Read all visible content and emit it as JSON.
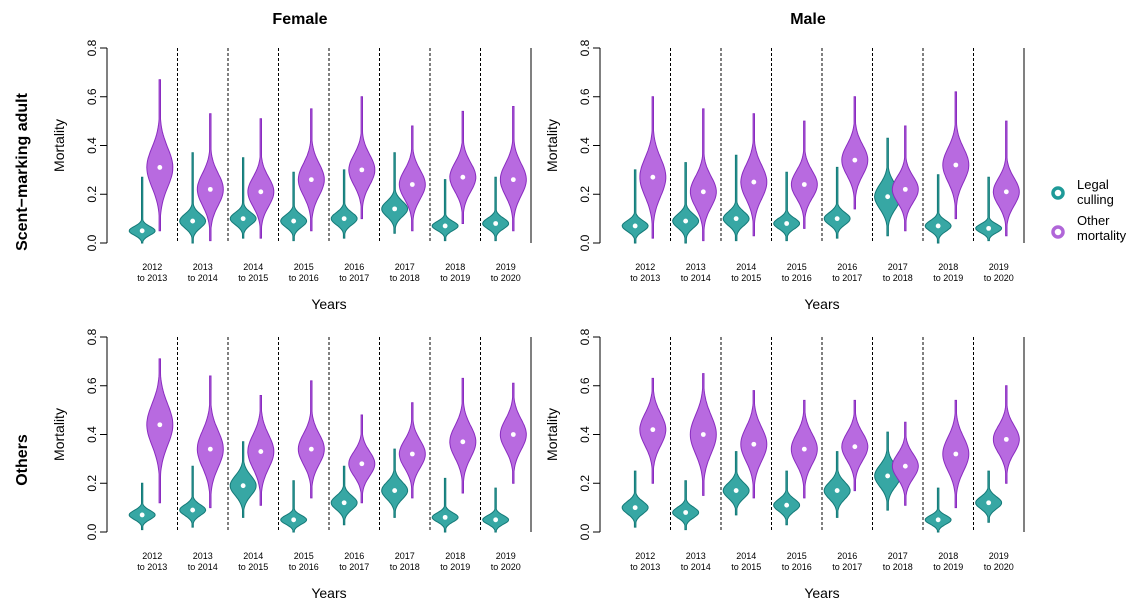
{
  "figure": {
    "col_titles": [
      "Female",
      "Male"
    ],
    "row_titles": [
      "Scent−marking adult",
      "Others"
    ],
    "legend": [
      {
        "line1": "Legal",
        "line2": "culling",
        "color": "#1e9a98"
      },
      {
        "line1": "Other",
        "line2": "mortality",
        "color": "#b066d8"
      }
    ]
  },
  "chart_data": [
    {
      "type": "violin",
      "panel": "Scent-marking adult / Female",
      "xlabel": "Years",
      "ylabel": "Mortality",
      "ylim": [
        0,
        0.8
      ],
      "yticks": [
        "0.0",
        "0.2",
        "0.4",
        "0.6",
        "0.8"
      ],
      "categories": [
        [
          "2012",
          "to 2013"
        ],
        [
          "2013",
          "to 2014"
        ],
        [
          "2014",
          "to 2015"
        ],
        [
          "2015",
          "to 2016"
        ],
        [
          "2016",
          "to 2017"
        ],
        [
          "2017",
          "to 2018"
        ],
        [
          "2018",
          "to 2019"
        ],
        [
          "2019",
          "to 2020"
        ]
      ],
      "series": [
        {
          "name": "Legal culling",
          "median": [
            0.05,
            0.09,
            0.1,
            0.09,
            0.1,
            0.14,
            0.07,
            0.08
          ],
          "min": [
            0.0,
            0.0,
            0.02,
            0.01,
            0.02,
            0.04,
            0.01,
            0.01
          ],
          "max": [
            0.27,
            0.37,
            0.35,
            0.29,
            0.3,
            0.37,
            0.26,
            0.27
          ]
        },
        {
          "name": "Other mortality",
          "median": [
            0.31,
            0.22,
            0.21,
            0.26,
            0.3,
            0.24,
            0.27,
            0.26
          ],
          "min": [
            0.05,
            0.01,
            0.02,
            0.05,
            0.1,
            0.05,
            0.08,
            0.05
          ],
          "max": [
            0.67,
            0.53,
            0.51,
            0.55,
            0.6,
            0.48,
            0.54,
            0.56
          ]
        }
      ]
    },
    {
      "type": "violin",
      "panel": "Scent-marking adult / Male",
      "xlabel": "Years",
      "ylabel": "Mortality",
      "ylim": [
        0,
        0.8
      ],
      "yticks": [
        "0.0",
        "0.2",
        "0.4",
        "0.6",
        "0.8"
      ],
      "categories": [
        [
          "2012",
          "to 2013"
        ],
        [
          "2013",
          "to 2014"
        ],
        [
          "2014",
          "to 2015"
        ],
        [
          "2015",
          "to 2016"
        ],
        [
          "2016",
          "to 2017"
        ],
        [
          "2017",
          "to 2018"
        ],
        [
          "2018",
          "to 2019"
        ],
        [
          "2019",
          "to 2020"
        ]
      ],
      "series": [
        {
          "name": "Legal culling",
          "median": [
            0.07,
            0.09,
            0.1,
            0.08,
            0.1,
            0.19,
            0.07,
            0.06
          ],
          "min": [
            0.0,
            0.0,
            0.01,
            0.01,
            0.02,
            0.03,
            0.0,
            0.01
          ],
          "max": [
            0.3,
            0.33,
            0.36,
            0.29,
            0.31,
            0.43,
            0.28,
            0.27
          ]
        },
        {
          "name": "Other mortality",
          "median": [
            0.27,
            0.21,
            0.25,
            0.24,
            0.34,
            0.22,
            0.32,
            0.21
          ],
          "min": [
            0.02,
            0.01,
            0.03,
            0.06,
            0.14,
            0.05,
            0.1,
            0.03
          ],
          "max": [
            0.6,
            0.55,
            0.53,
            0.5,
            0.6,
            0.48,
            0.62,
            0.5
          ]
        }
      ]
    },
    {
      "type": "violin",
      "panel": "Others / Female",
      "xlabel": "Years",
      "ylabel": "Mortality",
      "ylim": [
        0,
        0.8
      ],
      "yticks": [
        "0.0",
        "0.2",
        "0.4",
        "0.6",
        "0.8"
      ],
      "categories": [
        [
          "2012",
          "to 2013"
        ],
        [
          "2013",
          "to 2014"
        ],
        [
          "2014",
          "to 2015"
        ],
        [
          "2015",
          "to 2016"
        ],
        [
          "2016",
          "to 2017"
        ],
        [
          "2017",
          "to 2018"
        ],
        [
          "2018",
          "to 2019"
        ],
        [
          "2019",
          "to 2020"
        ]
      ],
      "series": [
        {
          "name": "Legal culling",
          "median": [
            0.07,
            0.09,
            0.19,
            0.05,
            0.12,
            0.17,
            0.06,
            0.05
          ],
          "min": [
            0.01,
            0.02,
            0.06,
            0.0,
            0.03,
            0.06,
            0.0,
            0.0
          ],
          "max": [
            0.2,
            0.27,
            0.37,
            0.21,
            0.27,
            0.34,
            0.22,
            0.18
          ]
        },
        {
          "name": "Other mortality",
          "median": [
            0.44,
            0.34,
            0.33,
            0.34,
            0.28,
            0.32,
            0.37,
            0.4
          ],
          "min": [
            0.12,
            0.1,
            0.11,
            0.14,
            0.12,
            0.14,
            0.16,
            0.2
          ],
          "max": [
            0.71,
            0.64,
            0.56,
            0.62,
            0.48,
            0.53,
            0.63,
            0.61
          ]
        }
      ]
    },
    {
      "type": "violin",
      "panel": "Others / Male",
      "xlabel": "Years",
      "ylabel": "Mortality",
      "ylim": [
        0,
        0.8
      ],
      "yticks": [
        "0.0",
        "0.2",
        "0.4",
        "0.6",
        "0.8"
      ],
      "categories": [
        [
          "2012",
          "to 2013"
        ],
        [
          "2013",
          "to 2014"
        ],
        [
          "2014",
          "to 2015"
        ],
        [
          "2015",
          "to 2016"
        ],
        [
          "2016",
          "to 2017"
        ],
        [
          "2017",
          "to 2018"
        ],
        [
          "2018",
          "to 2019"
        ],
        [
          "2019",
          "to 2020"
        ]
      ],
      "series": [
        {
          "name": "Legal culling",
          "median": [
            0.1,
            0.08,
            0.17,
            0.11,
            0.17,
            0.23,
            0.05,
            0.12
          ],
          "min": [
            0.02,
            0.01,
            0.07,
            0.03,
            0.06,
            0.09,
            0.0,
            0.04
          ],
          "max": [
            0.25,
            0.21,
            0.33,
            0.25,
            0.33,
            0.41,
            0.18,
            0.25
          ]
        },
        {
          "name": "Other mortality",
          "median": [
            0.42,
            0.4,
            0.36,
            0.34,
            0.35,
            0.27,
            0.32,
            0.38
          ],
          "min": [
            0.2,
            0.15,
            0.14,
            0.14,
            0.17,
            0.11,
            0.1,
            0.2
          ],
          "max": [
            0.63,
            0.65,
            0.58,
            0.54,
            0.54,
            0.45,
            0.54,
            0.6
          ]
        }
      ]
    }
  ]
}
